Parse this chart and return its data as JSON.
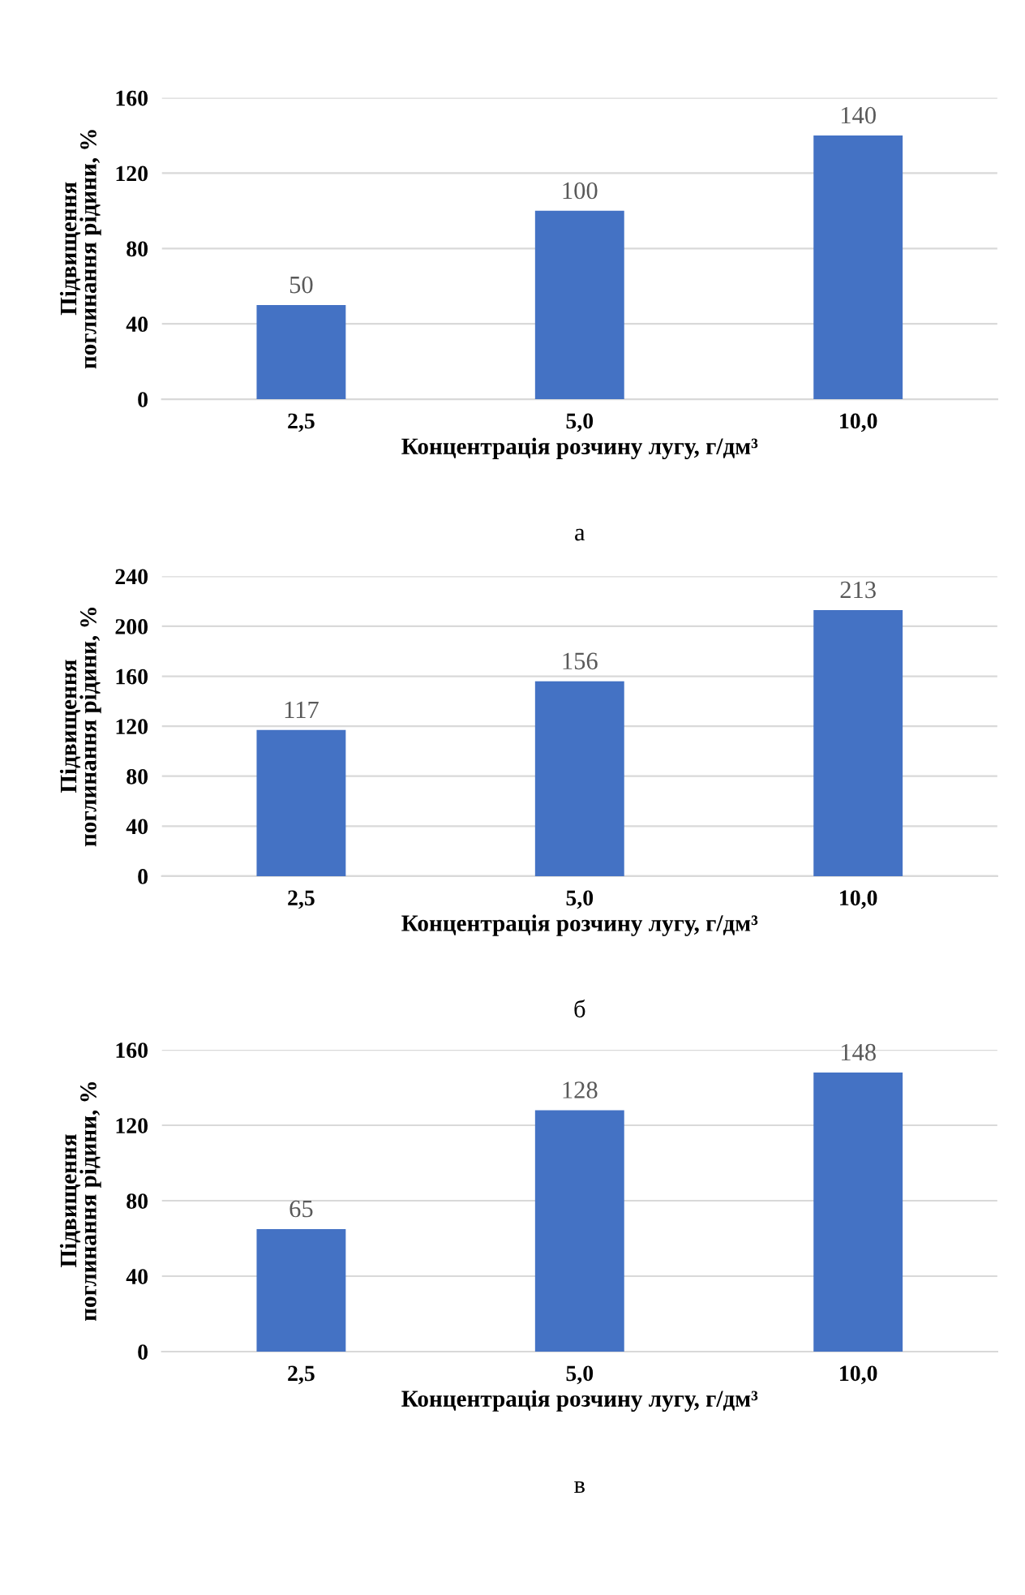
{
  "chart_data": [
    {
      "type": "bar",
      "categories": [
        "2,5",
        "5,0",
        "10,0"
      ],
      "values": [
        50,
        100,
        140
      ],
      "color": "#4472c4",
      "xlabel": "Концентрація розчину лугу, г/дм³",
      "ylabel": "Підвищення\nпоглинання рідини, %",
      "ylim": [
        0,
        160
      ],
      "yticks": [
        0,
        40,
        80,
        120,
        160
      ],
      "grid": "y",
      "data_labels": true,
      "annotations": [
        "а"
      ]
    },
    {
      "type": "bar",
      "categories": [
        "2,5",
        "5,0",
        "10,0"
      ],
      "values": [
        117,
        156,
        213
      ],
      "color": "#4472c4",
      "xlabel": "Концентрація розчину лугу, г/дм³",
      "ylabel": "Підвищення\nпоглинання рідини, %",
      "ylim": [
        0,
        240
      ],
      "yticks": [
        0,
        40,
        80,
        120,
        160,
        200,
        240
      ],
      "grid": "y",
      "data_labels": true,
      "annotations": [
        "б"
      ]
    },
    {
      "type": "bar",
      "categories": [
        "2,5",
        "5,0",
        "10,0"
      ],
      "values": [
        65,
        128,
        148
      ],
      "color": "#4472c4",
      "xlabel": "Концентрація розчину лугу, г/дм³",
      "ylabel": "Підвищення\nпоглинання рідини, %",
      "ylim": [
        0,
        160
      ],
      "yticks": [
        0,
        40,
        80,
        120,
        160
      ],
      "grid": "y",
      "data_labels": true,
      "annotations": [
        "в"
      ]
    }
  ]
}
